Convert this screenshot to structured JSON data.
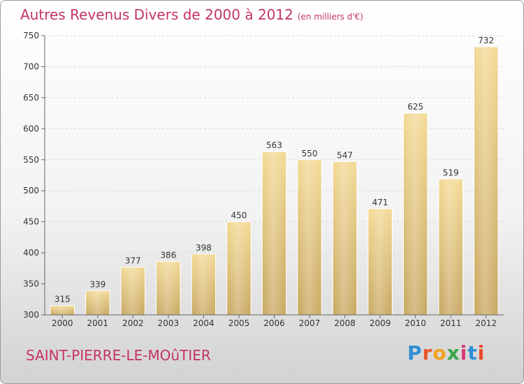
{
  "header": {
    "title": "Autres Revenus Divers de 2000 à 2012",
    "unit": "(en milliers d'€)"
  },
  "footer": {
    "city": "SAINT-PIERRE-LE-MOûTIER"
  },
  "logo": {
    "text": "Proxiti",
    "colors": [
      "#2f8fd6",
      "#e8572a",
      "#f0a21e",
      "#3aa64a",
      "#d63a7a",
      "#2f8fd6",
      "#e84a2a"
    ]
  },
  "chart_data": {
    "type": "bar",
    "categories": [
      "2000",
      "2001",
      "2002",
      "2003",
      "2004",
      "2005",
      "2006",
      "2007",
      "2008",
      "2009",
      "2010",
      "2011",
      "2012"
    ],
    "values": [
      315,
      339,
      377,
      386,
      398,
      450,
      563,
      550,
      547,
      471,
      625,
      519,
      732
    ],
    "ylim": [
      300,
      750
    ],
    "yticks": [
      300,
      350,
      400,
      450,
      500,
      550,
      600,
      650,
      700,
      750
    ],
    "grid": true,
    "bar_color": "#e8cc86",
    "title": "Autres Revenus Divers de 2000 à 2012",
    "xlabel": "",
    "ylabel": ""
  }
}
